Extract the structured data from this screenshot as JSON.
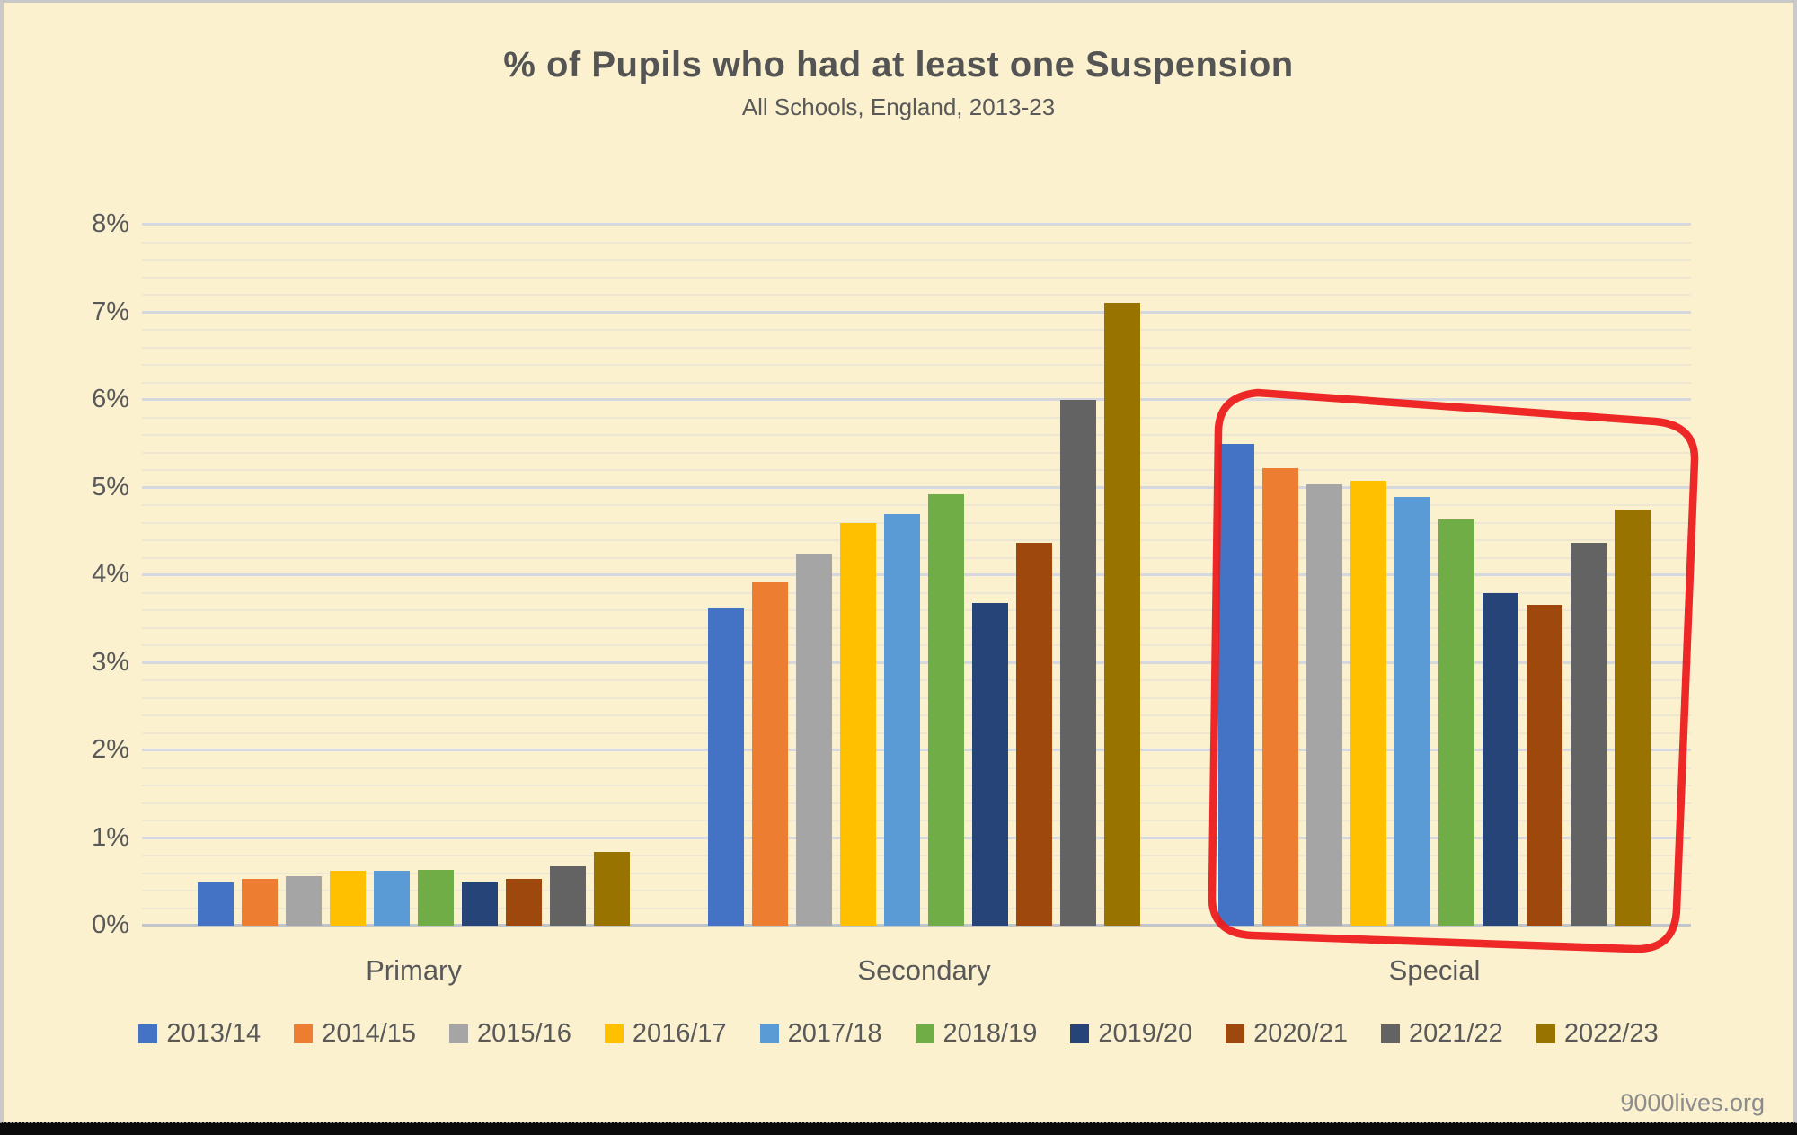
{
  "page": {
    "title": "% of Pupils who had at least one Suspension",
    "subtitle": "All Schools, England, 2013-23",
    "footer": "9000lives.org"
  },
  "chart_data": {
    "type": "bar",
    "title": "% of Pupils who had at least one Suspension",
    "subtitle": "All Schools, England, 2013-23",
    "categories": [
      "Primary",
      "Secondary",
      "Special"
    ],
    "series": [
      {
        "name": "2013/14",
        "color": "#4472C4",
        "values": [
          0.49,
          3.62,
          5.5
        ]
      },
      {
        "name": "2014/15",
        "color": "#ED7D31",
        "values": [
          0.53,
          3.92,
          5.22
        ]
      },
      {
        "name": "2015/16",
        "color": "#A5A5A5",
        "values": [
          0.56,
          4.25,
          5.04
        ]
      },
      {
        "name": "2016/17",
        "color": "#FFC000",
        "values": [
          0.63,
          4.6,
          5.08
        ]
      },
      {
        "name": "2017/18",
        "color": "#5B9BD5",
        "values": [
          0.63,
          4.7,
          4.89
        ]
      },
      {
        "name": "2018/19",
        "color": "#70AD47",
        "values": [
          0.64,
          4.92,
          4.64
        ]
      },
      {
        "name": "2019/20",
        "color": "#264478",
        "values": [
          0.5,
          3.68,
          3.8
        ]
      },
      {
        "name": "2020/21",
        "color": "#9E480E",
        "values": [
          0.53,
          4.37,
          3.66
        ]
      },
      {
        "name": "2021/22",
        "color": "#636363",
        "values": [
          0.68,
          6.0,
          4.37
        ]
      },
      {
        "name": "2022/23",
        "color": "#997300",
        "values": [
          0.84,
          7.11,
          4.75
        ]
      }
    ],
    "ylim": [
      0,
      8
    ],
    "yticks": [
      {
        "value": 0,
        "label": "0%"
      },
      {
        "value": 1,
        "label": "1%"
      },
      {
        "value": 2,
        "label": "2%"
      },
      {
        "value": 3,
        "label": "3%"
      },
      {
        "value": 4,
        "label": "4%"
      },
      {
        "value": 5,
        "label": "5%"
      },
      {
        "value": 6,
        "label": "6%"
      },
      {
        "value": 7,
        "label": "7%"
      },
      {
        "value": 8,
        "label": "8%"
      }
    ],
    "y_minor_step": 0.2,
    "grid": "on",
    "legend_position": "bottom",
    "annotation": {
      "shape": "freehand-rounded-rectangle",
      "target_category": "Special",
      "color": "#EC1C1C"
    }
  }
}
